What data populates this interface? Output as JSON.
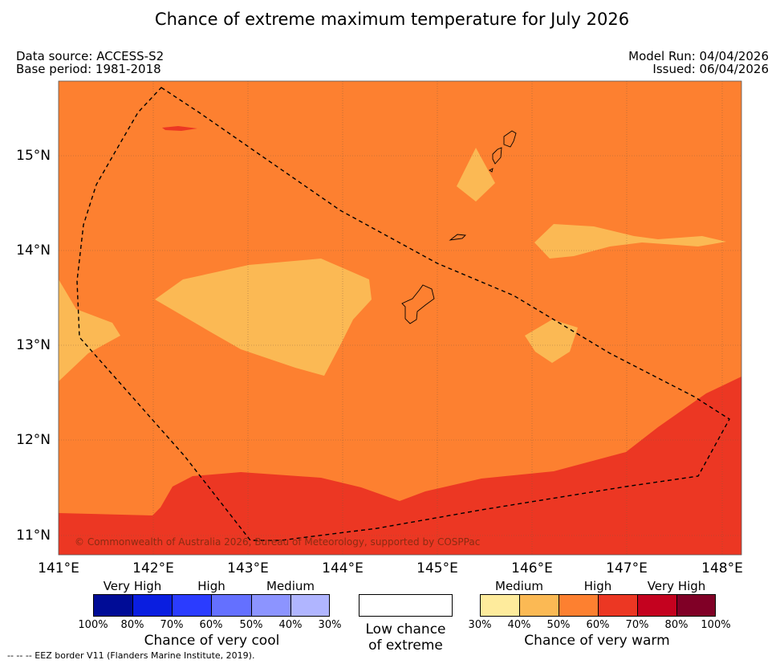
{
  "title": "Chance of extreme maximum temperature for July 2026",
  "meta": {
    "data_source": "Data source: ACCESS-S2",
    "base_period": "Base period: 1981-2018",
    "model_run": "Model Run: 04/04/2026",
    "issued": "Issued: 06/04/2026"
  },
  "map": {
    "copyright": "© Commonwealth of Australia 2026, Bureau of Meteorology, supported by COSPPac",
    "lat_labels": [
      "15°N",
      "14°N",
      "13°N",
      "12°N",
      "11°N"
    ],
    "lon_labels": [
      "141°E",
      "142°E",
      "143°E",
      "144°E",
      "145°E",
      "146°E",
      "147°E",
      "148°E"
    ],
    "colors": {
      "medium": "#fbb954",
      "high": "#fd8030",
      "very_high": "#ec3723"
    }
  },
  "legend": {
    "cool": {
      "groups": [
        "Very High",
        "High",
        "Medium"
      ],
      "colors": [
        "#000c96",
        "#0a1ee0",
        "#2b3cff",
        "#6470ff",
        "#8c94ff",
        "#b0b5ff"
      ],
      "ticks": [
        "100%",
        "80%",
        "70%",
        "60%",
        "50%",
        "40%",
        "30%"
      ],
      "title": "Chance of very cool"
    },
    "low": {
      "line1": "Low chance",
      "line2": "of extreme"
    },
    "warm": {
      "groups": [
        "Medium",
        "High",
        "Very High"
      ],
      "colors": [
        "#feeb9c",
        "#fbb954",
        "#fd8030",
        "#ec3723",
        "#c4021f",
        "#800026"
      ],
      "ticks": [
        "30%",
        "40%",
        "50%",
        "60%",
        "70%",
        "80%",
        "100%"
      ],
      "title": "Chance of very warm"
    }
  },
  "footnote": "--  --  -- EEZ border V11 (Flanders Marine Institute, 2019)."
}
